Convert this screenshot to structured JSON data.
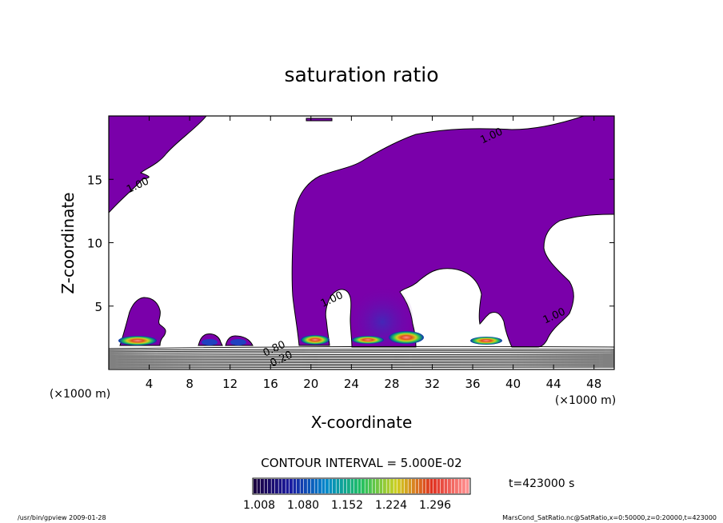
{
  "chart_data": {
    "type": "contour",
    "title": "saturation ratio",
    "xlabel": "X-coordinate",
    "ylabel": "Z-coordinate",
    "x_unit_left": "(×1000 m)",
    "x_unit_right": "(×1000 m)",
    "xlim": [
      0,
      50
    ],
    "ylim": [
      0,
      20
    ],
    "xticks": [
      4,
      8,
      12,
      16,
      20,
      24,
      28,
      32,
      36,
      40,
      44,
      48
    ],
    "yticks": [
      5,
      10,
      15
    ],
    "contour_interval_text": "CONTOUR INTERVAL = 5.000E-02",
    "contour_labels": [
      {
        "text": "1.00",
        "x": 38,
        "z": 18.2
      },
      {
        "text": "1.00",
        "x": 3,
        "z": 14.3
      },
      {
        "text": "1.00",
        "x": 22.2,
        "z": 5.3
      },
      {
        "text": "1.00",
        "x": 44.2,
        "z": 4.0
      },
      {
        "text": "0.80",
        "x": 16.5,
        "z": 1.4
      },
      {
        "text": "0.20",
        "x": 17.2,
        "z": 0.6
      }
    ],
    "saturated_region_color": "#7a00aa",
    "shading_levels": [
      "1.008",
      "1.080",
      "1.152",
      "1.224",
      "1.296"
    ],
    "colorbar_colors": [
      "#1a0040",
      "#1a1aa0",
      "#0088cc",
      "#20c060",
      "#d0d020",
      "#e03020",
      "#ff9090"
    ]
  },
  "time_label": "t=423000 s",
  "footer_left": "/usr/bin/gpview  2009-01-28",
  "footer_right": "MarsCond_SatRatio.nc@SatRatio,x=0:50000,z=0:20000,t=423000"
}
